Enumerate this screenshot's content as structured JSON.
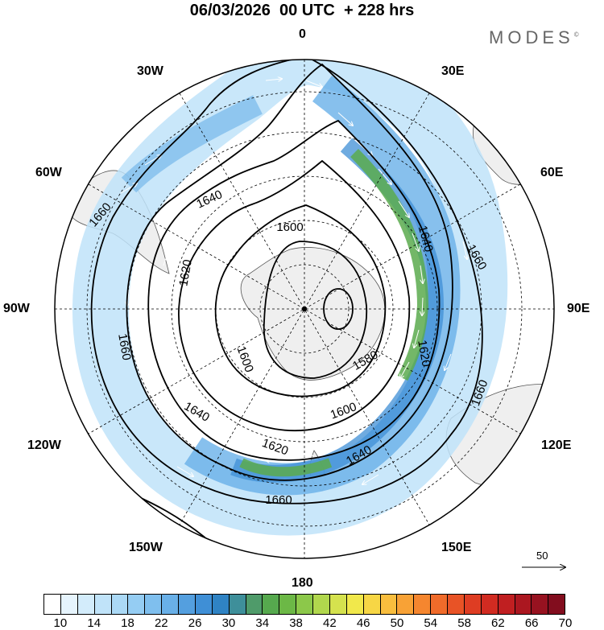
{
  "header": {
    "title": "06/03/2026  00 UTC  + 228 hrs",
    "brand": "MODES",
    "brand_mark": "©"
  },
  "map": {
    "projection": "south polar stereographic",
    "longitude_labels": {
      "0": "0",
      "30E": "30E",
      "60E": "60E",
      "90E": "90E",
      "120E": "120E",
      "150E": "150E",
      "180": "180",
      "150W": "150W",
      "120W": "120W",
      "90W": "90W",
      "60W": "60W",
      "30W": "30W"
    },
    "contour_labels": [
      "1660",
      "1640",
      "1620",
      "1600",
      "1580",
      "1600",
      "1620",
      "1640",
      "1660",
      "1660",
      "1640",
      "1620",
      "1600",
      "1600",
      "1620",
      "1640",
      "1660",
      "1660"
    ],
    "vector_reference": {
      "label": "50",
      "value": 50
    }
  },
  "colorbar": {
    "ticks": [
      "10",
      "14",
      "18",
      "22",
      "26",
      "30",
      "34",
      "38",
      "42",
      "46",
      "50",
      "54",
      "58",
      "62",
      "66",
      "70"
    ],
    "colors": [
      "#ffffff",
      "#e6f4fd",
      "#d3ecfb",
      "#c0e3f9",
      "#abd9f6",
      "#95cdf3",
      "#7fbfee",
      "#69b0e8",
      "#549fdf",
      "#3f8fd6",
      "#2f83c4",
      "#3e8f9a",
      "#4f9b6a",
      "#56a94e",
      "#6cb846",
      "#8cc84a",
      "#b1d74d",
      "#d5e24e",
      "#f1e84b",
      "#f7d645",
      "#f9be3e",
      "#f8a236",
      "#f5862f",
      "#f06b2a",
      "#e85326",
      "#de3d23",
      "#d12b21",
      "#c01f21",
      "#ab1720",
      "#971220",
      "#820d1e"
    ]
  },
  "colors": {
    "land": "#efefef",
    "jet_core": "#5aaa4e",
    "wind_fill": "#7fbfee"
  }
}
